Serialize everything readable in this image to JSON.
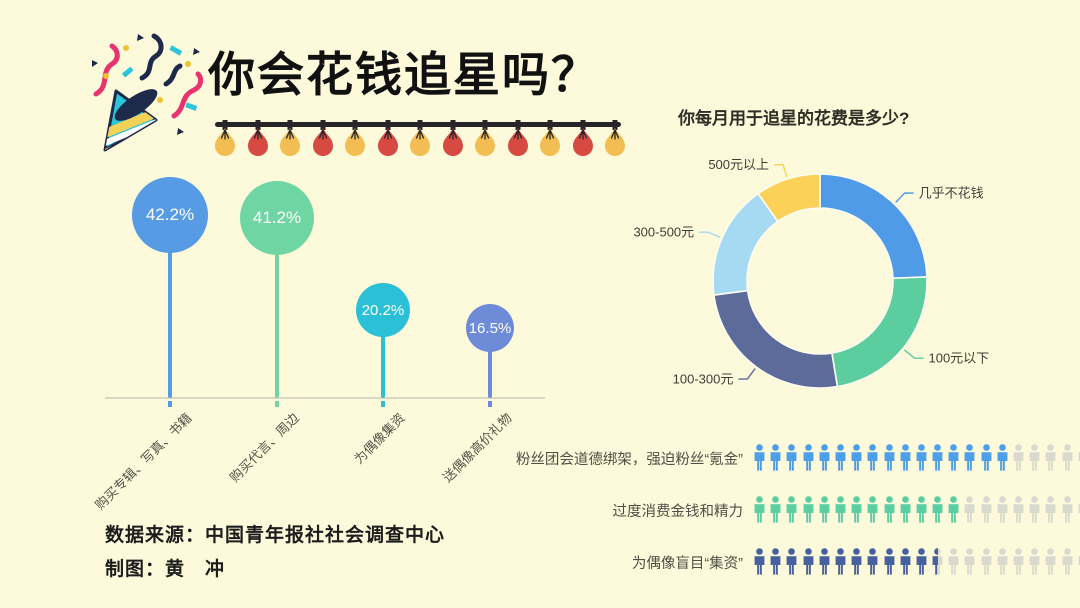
{
  "page": {
    "background": "#FCFADB"
  },
  "header": {
    "title": "你会花钱追星吗？",
    "party_icon": "party-popper-icon"
  },
  "lights": {
    "count": 13,
    "bulb_colors": [
      "#F2BE53",
      "#D64A41"
    ],
    "wire_color": "#26262a"
  },
  "lollipop": {
    "categories": [
      "购买专辑、写真、书籍",
      "购买代言、周边",
      "为偶像集资",
      "送偶像高价礼物"
    ],
    "values": [
      42.2,
      41.2,
      20.2,
      16.5
    ],
    "value_labels": [
      "42.2%",
      "41.2%",
      "20.2%",
      "16.5%"
    ],
    "colors": [
      "#569BE3",
      "#6FD6A3",
      "#2BC0D8",
      "#6E8BD8"
    ]
  },
  "donut": {
    "title": "你每月用于追星的花费是多少?",
    "slices": [
      {
        "label": "几乎不花钱",
        "value": 24.4,
        "color": "#4F9BE8"
      },
      {
        "label": "100元以下",
        "value": 23.0,
        "color": "#5BCD9E"
      },
      {
        "label": "100-300元",
        "value": 25.5,
        "color": "#5C6B99"
      },
      {
        "label": "300-500元",
        "value": 17.3,
        "color": "#A6D9F2"
      },
      {
        "label": "500元以上",
        "value": 9.8,
        "color": "#FBD158"
      }
    ]
  },
  "pictograph": {
    "empty_color": "#D9D9CE",
    "rows": [
      {
        "label": "粉丝团会道德绑架，强迫粉丝“氪金”",
        "filled": 16,
        "total": 21,
        "color": "#4D9FE8"
      },
      {
        "label": "过度消费金钱和精力",
        "filled": 13,
        "total": 21,
        "color": "#59CFA2"
      },
      {
        "label": "为偶像盲目“集资”",
        "filled": 11.5,
        "total": 21,
        "color": "#46619E"
      }
    ]
  },
  "footer": {
    "source": "数据来源：中国青年报社社会调查中心",
    "author": "制图：黄　冲"
  },
  "chart_data": [
    {
      "type": "bar",
      "subtype": "lollipop",
      "categories": [
        "购买专辑、写真、书籍",
        "购买代言、周边",
        "为偶像集资",
        "送偶像高价礼物"
      ],
      "values": [
        42.2,
        41.2,
        20.2,
        16.5
      ],
      "unit": "%",
      "title": "你会花钱追星吗？",
      "xlabel": "",
      "ylabel": "",
      "grid": false
    },
    {
      "type": "pie",
      "subtype": "donut",
      "title": "你每月用于追星的花费是多少?",
      "labels": [
        "几乎不花钱",
        "100元以下",
        "100-300元",
        "300-500元",
        "500元以上"
      ],
      "values": [
        24.4,
        23.0,
        25.5,
        17.3,
        9.8
      ],
      "values_note": "estimated from arc angles, not labeled in source",
      "legend_position": "callout-labels"
    },
    {
      "type": "table",
      "subtype": "pictograph",
      "rows": [
        {
          "label": "粉丝团会道德绑架，强迫粉丝“氪金”",
          "filled_icons": 16,
          "total_icons": 21
        },
        {
          "label": "过度消费金钱和精力",
          "filled_icons": 13,
          "total_icons": 21
        },
        {
          "label": "为偶像盲目“集资”",
          "filled_icons": 11.5,
          "total_icons": 21
        }
      ]
    }
  ]
}
